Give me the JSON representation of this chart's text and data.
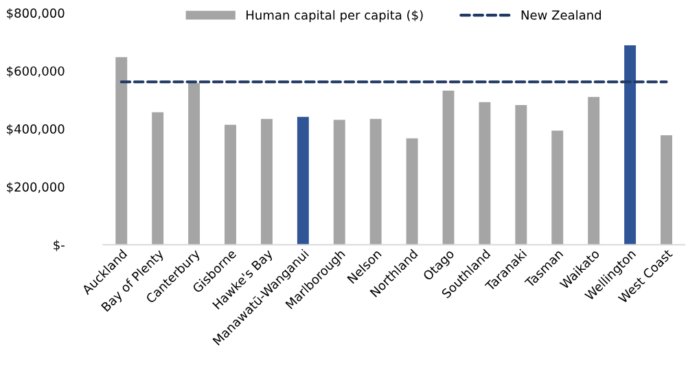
{
  "chart_data": {
    "type": "bar",
    "categories": [
      "Auckland",
      "Bay of Plenty",
      "Canterbury",
      "Gisborne",
      "Hawke's Bay",
      "Manawatū-Wanganui",
      "Marlborough",
      "Nelson",
      "Northland",
      "Otago",
      "Southland",
      "Taranaki",
      "Tasman",
      "Waikato",
      "Wellington",
      "West Coast"
    ],
    "series": [
      {
        "name": "Human capital per capita ($)",
        "color": "#a5a5a5",
        "colors": [
          "#a5a5a5",
          "#a5a5a5",
          "#a5a5a5",
          "#a5a5a5",
          "#a5a5a5",
          "#2f5597",
          "#a5a5a5",
          "#a5a5a5",
          "#a5a5a5",
          "#a5a5a5",
          "#a5a5a5",
          "#a5a5a5",
          "#a5a5a5",
          "#a5a5a5",
          "#2f5597",
          "#a5a5a5"
        ],
        "values": [
          647000,
          457000,
          558000,
          414000,
          434000,
          441000,
          431000,
          434000,
          367000,
          532000,
          492000,
          482000,
          394000,
          510000,
          688000,
          378000
        ]
      }
    ],
    "ref_lines": [
      {
        "axis": "y",
        "value": 562000,
        "label": "New Zealand",
        "color": "#203864",
        "line_style": "dashed"
      }
    ],
    "ylim": [
      0,
      800000
    ],
    "yticks": [
      {
        "value": 0,
        "label": "$-"
      },
      {
        "value": 200000,
        "label": "$200,000"
      },
      {
        "value": 400000,
        "label": "$400,000"
      },
      {
        "value": 600000,
        "label": "$600,000"
      },
      {
        "value": 800000,
        "label": "$800,000"
      }
    ],
    "grid": false,
    "legend": "top"
  }
}
